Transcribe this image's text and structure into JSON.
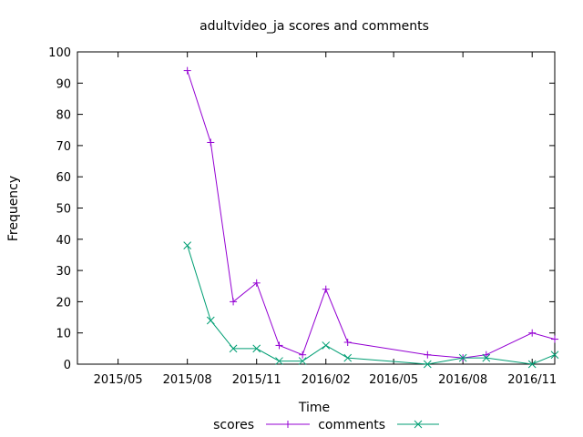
{
  "chart_data": {
    "type": "line",
    "title": "adultvideo_ja scores and comments",
    "xlabel": "Time",
    "ylabel": "Frequency",
    "ylim": [
      0,
      100
    ],
    "yticks": [
      0,
      10,
      20,
      30,
      40,
      50,
      60,
      70,
      80,
      90,
      100
    ],
    "xlim": [
      "2015-03-08",
      "2016-12-01"
    ],
    "xticks": [
      {
        "date": "2015-05-01",
        "label": "2015/05"
      },
      {
        "date": "2015-08-01",
        "label": "2015/08"
      },
      {
        "date": "2015-11-01",
        "label": "2015/11"
      },
      {
        "date": "2016-02-01",
        "label": "2016/02"
      },
      {
        "date": "2016-05-01",
        "label": "2016/05"
      },
      {
        "date": "2016-08-01",
        "label": "2016/08"
      },
      {
        "date": "2016-11-01",
        "label": "2016/11"
      }
    ],
    "grid": false,
    "legend_position": "bottom",
    "series": [
      {
        "name": "scores",
        "color": "#9400d3",
        "marker": "plus",
        "points": [
          {
            "x": "2015-08-01",
            "y": 94
          },
          {
            "x": "2015-09-01",
            "y": 71
          },
          {
            "x": "2015-10-01",
            "y": 20
          },
          {
            "x": "2015-11-01",
            "y": 26
          },
          {
            "x": "2015-12-01",
            "y": 6
          },
          {
            "x": "2016-01-01",
            "y": 3
          },
          {
            "x": "2016-02-01",
            "y": 24
          },
          {
            "x": "2016-03-01",
            "y": 7
          },
          {
            "x": "2016-06-15",
            "y": 3
          },
          {
            "x": "2016-08-01",
            "y": 2
          },
          {
            "x": "2016-09-01",
            "y": 3
          },
          {
            "x": "2016-11-01",
            "y": 10
          },
          {
            "x": "2016-12-01",
            "y": 8
          }
        ]
      },
      {
        "name": "comments",
        "color": "#009e73",
        "marker": "cross",
        "points": [
          {
            "x": "2015-08-01",
            "y": 38
          },
          {
            "x": "2015-09-01",
            "y": 14
          },
          {
            "x": "2015-10-01",
            "y": 5
          },
          {
            "x": "2015-11-01",
            "y": 5
          },
          {
            "x": "2015-12-01",
            "y": 1
          },
          {
            "x": "2016-01-01",
            "y": 1
          },
          {
            "x": "2016-02-01",
            "y": 6
          },
          {
            "x": "2016-03-01",
            "y": 2
          },
          {
            "x": "2016-06-15",
            "y": 0
          },
          {
            "x": "2016-08-01",
            "y": 2
          },
          {
            "x": "2016-09-01",
            "y": 2
          },
          {
            "x": "2016-11-01",
            "y": 0
          },
          {
            "x": "2016-12-01",
            "y": 3
          }
        ]
      }
    ]
  }
}
